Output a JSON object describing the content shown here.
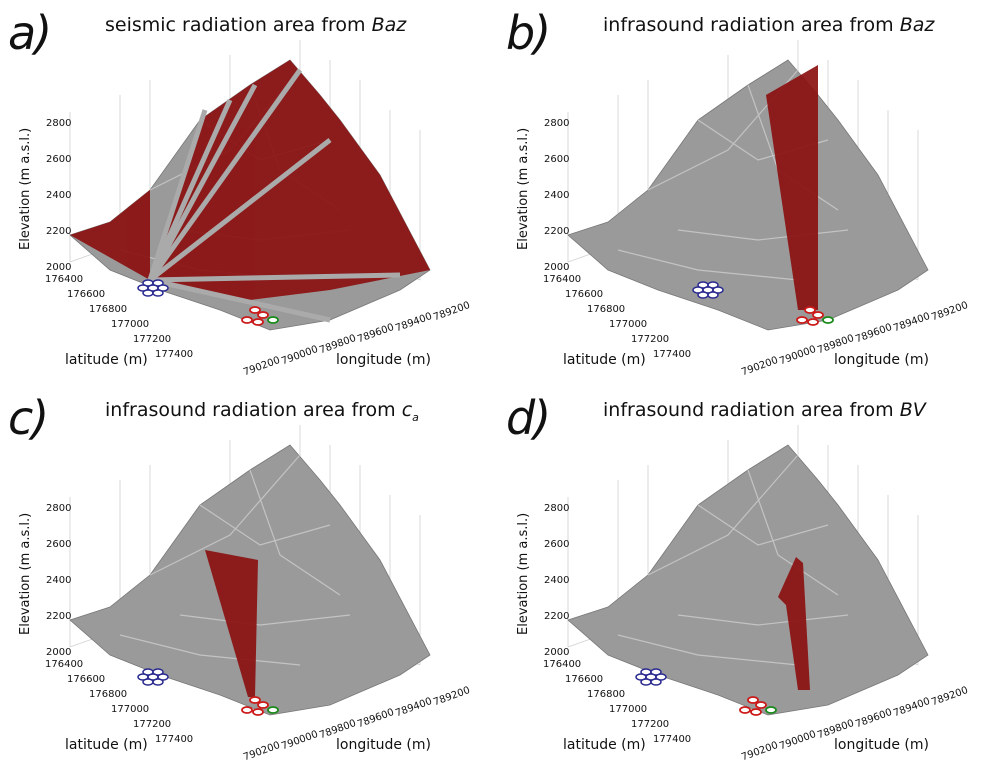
{
  "panels": [
    {
      "letter": "a)",
      "title_prefix": "seismic radiation area from ",
      "title_emph": "Baz",
      "title_sub": ""
    },
    {
      "letter": "b)",
      "title_prefix": "infrasound radiation area from ",
      "title_emph": "Baz",
      "title_sub": ""
    },
    {
      "letter": "c)",
      "title_prefix": "infrasound radiation area from ",
      "title_emph": "c",
      "title_sub": "a"
    },
    {
      "letter": "d)",
      "title_prefix": "infrasound radiation area from ",
      "title_emph": "BV",
      "title_sub": ""
    }
  ],
  "axes": {
    "elevation_label": "Elevation (m a.s.l.)",
    "latitude_label": "latitude (m)",
    "longitude_label": "longitude (m)",
    "z_ticks": [
      "2800",
      "2600",
      "2400",
      "2200",
      "2000"
    ],
    "lat_ticks": [
      "176400",
      "176600",
      "176800",
      "177000",
      "177200",
      "177400"
    ],
    "lon_ticks": [
      "789200",
      "789400",
      "789600",
      "789800",
      "790000",
      "790200"
    ]
  },
  "colors": {
    "terrain": "#9a9a9a",
    "terrain_light": "#c8c8c8",
    "radiation": "#8b1010",
    "station_blue": "#2a2a90",
    "station_red": "#cc1a1a",
    "station_green": "#1a8a1a"
  }
}
